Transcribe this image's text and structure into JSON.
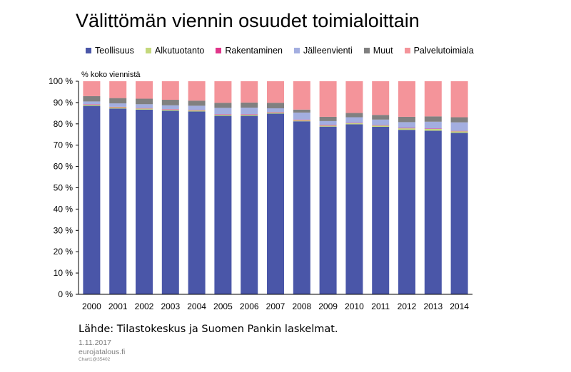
{
  "chart_data": {
    "type": "bar",
    "stacked": true,
    "title": "Välittömän viennin osuudet toimialoittain",
    "ylabel": "% koko viennistä",
    "xlabel": "",
    "ylim": [
      0,
      100
    ],
    "yticks": [
      "0 %",
      "10 %",
      "20 %",
      "30 %",
      "40 %",
      "50 %",
      "60 %",
      "70 %",
      "80 %",
      "90 %",
      "100 %"
    ],
    "ytick_values": [
      0,
      10,
      20,
      30,
      40,
      50,
      60,
      70,
      80,
      90,
      100
    ],
    "grid": false,
    "legend_position": "top",
    "categories": [
      "2000",
      "2001",
      "2002",
      "2003",
      "2004",
      "2005",
      "2006",
      "2007",
      "2008",
      "2009",
      "2010",
      "2011",
      "2012",
      "2013",
      "2014"
    ],
    "series": [
      {
        "name": "Teollisuus",
        "color": "#4a56a8",
        "values": [
          88.5,
          87.2,
          86.7,
          86.2,
          85.8,
          83.8,
          83.8,
          84.8,
          81.2,
          78.7,
          79.8,
          78.6,
          77.2,
          76.8,
          75.8
        ]
      },
      {
        "name": "Alkutuotanto",
        "color": "#c4d87c",
        "values": [
          0.5,
          0.6,
          0.5,
          0.5,
          0.5,
          0.5,
          0.5,
          0.5,
          0.5,
          0.5,
          0.5,
          0.6,
          0.7,
          0.8,
          0.7
        ]
      },
      {
        "name": "Rakentaminen",
        "color": "#e0368a",
        "values": [
          0.2,
          0.2,
          0.2,
          0.2,
          0.2,
          0.2,
          0.2,
          0.2,
          0.3,
          0.3,
          0.2,
          0.2,
          0.2,
          0.2,
          0.2
        ]
      },
      {
        "name": "Jälleenvienti",
        "color": "#a3aee0",
        "values": [
          1.3,
          1.6,
          1.8,
          1.8,
          2.0,
          3.0,
          3.1,
          1.8,
          3.3,
          1.8,
          2.6,
          2.6,
          2.7,
          3.2,
          4.0
        ]
      },
      {
        "name": "Muut",
        "color": "#808080",
        "values": [
          2.5,
          2.5,
          2.6,
          2.6,
          2.4,
          2.4,
          2.4,
          2.6,
          1.4,
          2.0,
          2.0,
          2.2,
          2.5,
          2.5,
          2.4
        ]
      },
      {
        "name": "Palvelutoimiala",
        "color": "#f4949a",
        "values": [
          7.0,
          7.9,
          8.2,
          8.7,
          9.1,
          10.1,
          10.0,
          10.1,
          13.3,
          16.7,
          14.9,
          15.8,
          16.7,
          16.5,
          16.9
        ]
      }
    ]
  },
  "source": "Lähde: Tilastokeskus ja Suomen Pankin laskelmat.",
  "date": "1.11.2017",
  "site": "eurojatalous.fi",
  "chart_id": "Chart1@35402"
}
